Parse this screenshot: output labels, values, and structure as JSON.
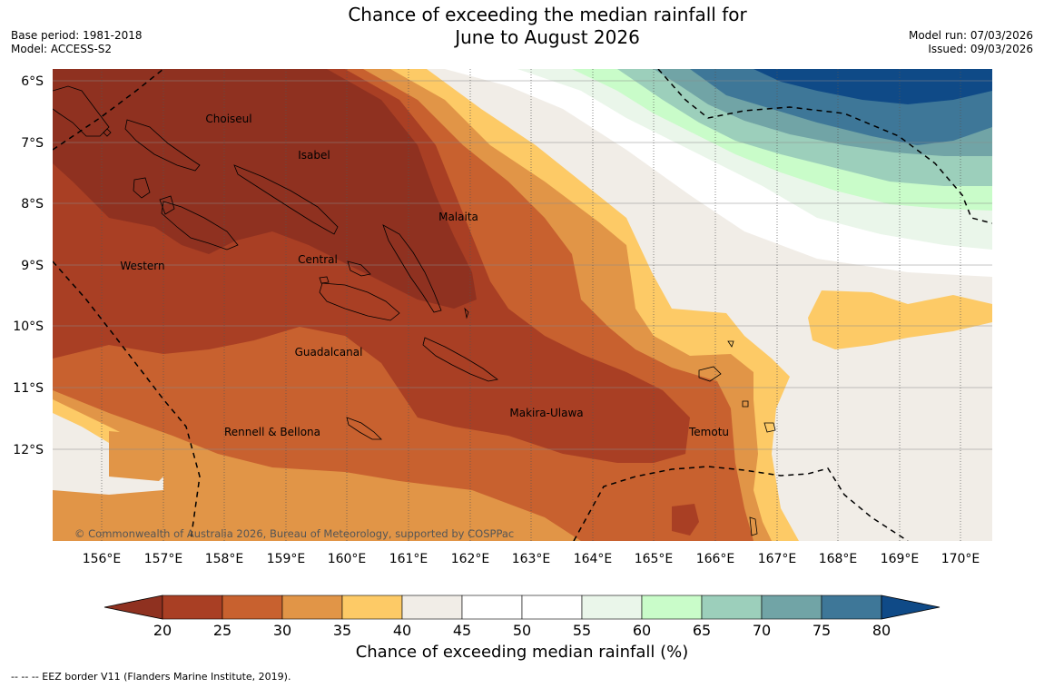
{
  "header": {
    "title_line1": "Chance of exceeding the median rainfall for",
    "title_line2": "June to August 2026",
    "base_period": "Base period: 1981-2018",
    "model": "Model: ACCESS-S2",
    "model_run": "Model run: 07/03/2026",
    "issued": "Issued: 09/03/2026"
  },
  "map": {
    "lat_labels": [
      "6°S",
      "7°S",
      "8°S",
      "9°S",
      "10°S",
      "11°S",
      "12°S"
    ],
    "lon_labels": [
      "156°E",
      "157°E",
      "158°E",
      "159°E",
      "160°E",
      "161°E",
      "162°E",
      "163°E",
      "164°E",
      "165°E",
      "166°E",
      "167°E",
      "168°E",
      "169°E",
      "170°E"
    ],
    "region_labels": [
      "Choiseul",
      "Isabel",
      "Malaita",
      "Central",
      "Western",
      "Guadalcanal",
      "Makira-Ulawa",
      "Rennell & Bellona",
      "Temotu"
    ],
    "copyright": "© Commonwealth of Australia 2026, Bureau of Meteorology, supported by COSPPac"
  },
  "colorbar": {
    "ticks": [
      "20",
      "25",
      "30",
      "35",
      "40",
      "45",
      "50",
      "55",
      "60",
      "65",
      "70",
      "75",
      "80"
    ],
    "colors": [
      "#8f3120",
      "#a93f24",
      "#c8612f",
      "#e19547",
      "#fdca66",
      "#f1ede7",
      "#ffffff",
      "#ffffff",
      "#eaf6ea",
      "#c9fcc9",
      "#9ccfbb",
      "#71a4a6",
      "#3e7798",
      "#0f4a87"
    ],
    "title": "Chance of exceeding median rainfall (%)"
  },
  "footnote": "--  --  -- EEZ border V11 (Flanders Marine Institute, 2019)."
}
